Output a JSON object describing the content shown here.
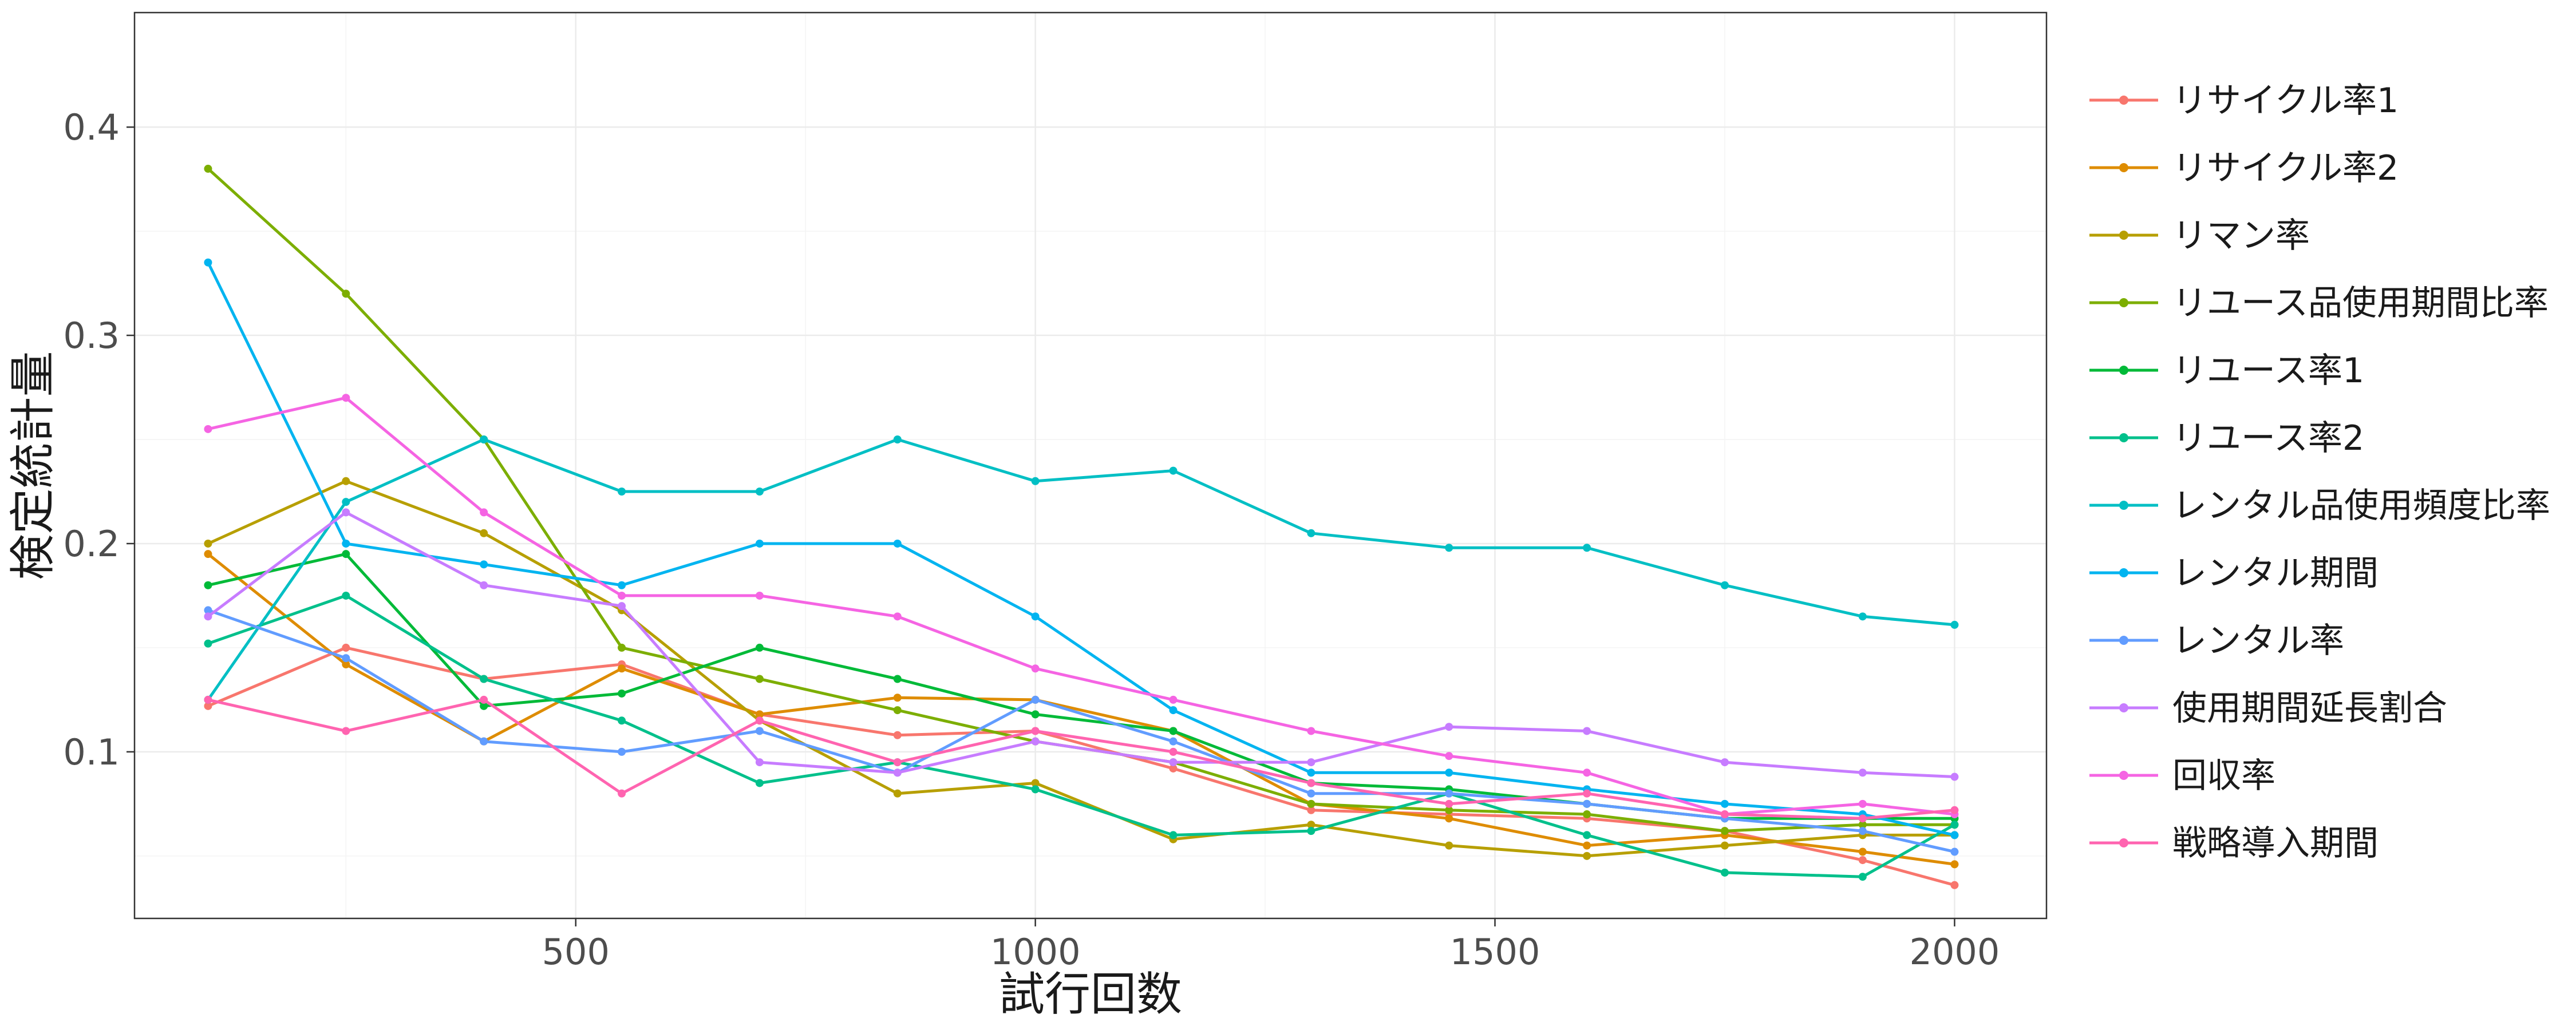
{
  "chart_data": {
    "type": "line",
    "xlabel": "試行回数",
    "ylabel": "検定統計量",
    "xlim": [
      20,
      2100
    ],
    "ylim": [
      0.02,
      0.455
    ],
    "xticks": [
      500,
      1000,
      1500,
      2000
    ],
    "xtick_labels": [
      "500",
      "1000",
      "1500",
      "2000"
    ],
    "yticks": [
      0.1,
      0.2,
      0.3,
      0.4
    ],
    "ytick_labels": [
      "0.1",
      "0.2",
      "0.3",
      "0.4"
    ],
    "grid": true,
    "legend_position": "right",
    "x": [
      100,
      250,
      400,
      550,
      700,
      850,
      1000,
      1150,
      1300,
      1450,
      1600,
      1750,
      1900,
      2000
    ],
    "series": [
      {
        "name": "リサイクル率1",
        "color": "#F8766D",
        "values": [
          0.122,
          0.15,
          0.135,
          0.142,
          0.118,
          0.108,
          0.11,
          0.092,
          0.072,
          0.07,
          0.068,
          0.062,
          0.048,
          0.036
        ]
      },
      {
        "name": "リサイクル率2",
        "color": "#DE8C00",
        "values": [
          0.195,
          0.142,
          0.105,
          0.14,
          0.118,
          0.126,
          0.125,
          0.11,
          0.075,
          0.068,
          0.055,
          0.06,
          0.052,
          0.046
        ]
      },
      {
        "name": "リマン率",
        "color": "#B79F00",
        "values": [
          0.2,
          0.23,
          0.205,
          0.168,
          0.115,
          0.08,
          0.085,
          0.058,
          0.065,
          0.055,
          0.05,
          0.055,
          0.06,
          0.06
        ]
      },
      {
        "name": "リユース品使用期間比率",
        "color": "#7CAE00",
        "values": [
          0.38,
          0.32,
          0.25,
          0.15,
          0.135,
          0.12,
          0.105,
          0.095,
          0.075,
          0.072,
          0.07,
          0.062,
          0.065,
          0.065
        ]
      },
      {
        "name": "リユース率1",
        "color": "#00BA38",
        "values": [
          0.18,
          0.195,
          0.122,
          0.128,
          0.15,
          0.135,
          0.118,
          0.11,
          0.085,
          0.082,
          0.075,
          0.068,
          0.068,
          0.068
        ]
      },
      {
        "name": "リユース率2",
        "color": "#00C08B",
        "values": [
          0.152,
          0.175,
          0.135,
          0.115,
          0.085,
          0.095,
          0.082,
          0.06,
          0.062,
          0.08,
          0.06,
          0.042,
          0.04,
          0.065
        ]
      },
      {
        "name": "レンタル品使用頻度比率",
        "color": "#00BFC4",
        "values": [
          0.125,
          0.22,
          0.25,
          0.225,
          0.225,
          0.25,
          0.23,
          0.235,
          0.205,
          0.198,
          0.198,
          0.18,
          0.165,
          0.161
        ]
      },
      {
        "name": "レンタル期間",
        "color": "#00B4F0",
        "values": [
          0.335,
          0.2,
          0.19,
          0.18,
          0.2,
          0.2,
          0.165,
          0.12,
          0.09,
          0.09,
          0.082,
          0.075,
          0.07,
          0.06
        ]
      },
      {
        "name": "レンタル率",
        "color": "#619CFF",
        "values": [
          0.168,
          0.145,
          0.105,
          0.1,
          0.11,
          0.09,
          0.125,
          0.105,
          0.08,
          0.08,
          0.075,
          0.068,
          0.062,
          0.052
        ]
      },
      {
        "name": "使用期間延長割合",
        "color": "#C77CFF",
        "values": [
          0.165,
          0.215,
          0.18,
          0.17,
          0.095,
          0.09,
          0.105,
          0.095,
          0.095,
          0.112,
          0.11,
          0.095,
          0.09,
          0.088
        ]
      },
      {
        "name": "回収率",
        "color": "#F564E3",
        "values": [
          0.255,
          0.27,
          0.215,
          0.175,
          0.175,
          0.165,
          0.14,
          0.125,
          0.11,
          0.098,
          0.09,
          0.07,
          0.075,
          0.07
        ]
      },
      {
        "name": "戦略導入期間",
        "color": "#FF64B0",
        "values": [
          0.125,
          0.11,
          0.125,
          0.08,
          0.115,
          0.095,
          0.11,
          0.1,
          0.085,
          0.075,
          0.08,
          0.07,
          0.068,
          0.072
        ]
      }
    ]
  }
}
